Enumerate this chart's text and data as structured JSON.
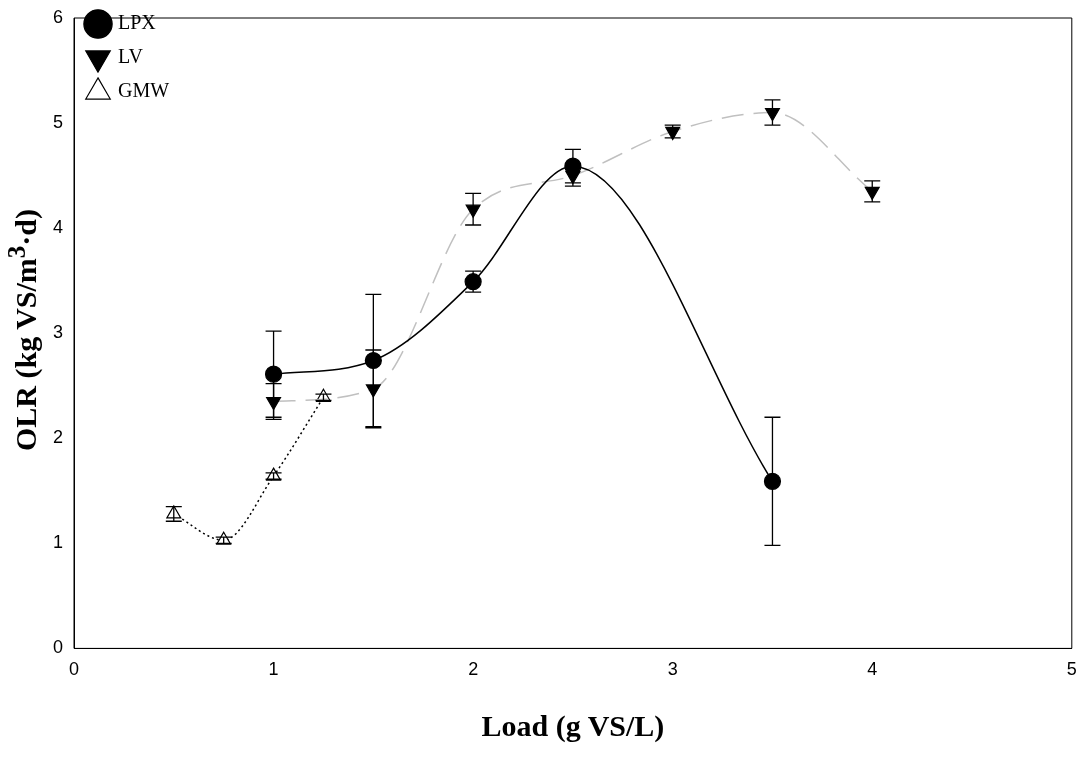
{
  "chart_data": {
    "type": "line",
    "xlabel": "Load (g VS/L)",
    "ylabel": "OLR (kg VS/m$^{3}$·d)",
    "xlim": [
      0,
      5
    ],
    "xticks": [
      0,
      1,
      2,
      3,
      4,
      5
    ],
    "ylim": [
      0,
      6
    ],
    "yticks": [
      0,
      1,
      2,
      3,
      4,
      5,
      6
    ],
    "grid": false,
    "legend": "top left",
    "series": [
      {
        "name": "LPX",
        "color": "#000000",
        "marker": "circle",
        "line_style": "solid",
        "x": [
          1,
          1.5,
          2,
          2.5,
          3.5
        ],
        "values": [
          2.61,
          2.74,
          3.49,
          4.59,
          1.59
        ],
        "errors": [
          0.41,
          0.63,
          0.1,
          0.16,
          0.61
        ]
      },
      {
        "name": "LV",
        "color": "#c0c0c0",
        "marker": "triangle-down",
        "line_style": "dashed",
        "x": [
          1,
          1.5,
          2,
          2.5,
          3,
          3.5,
          4
        ],
        "values": [
          2.35,
          2.47,
          4.18,
          4.5,
          4.92,
          5.1,
          4.35
        ],
        "errors": [
          0.17,
          0.37,
          0.15,
          0.1,
          0.06,
          0.12,
          0.1
        ]
      },
      {
        "name": "GMW",
        "color": "#000000",
        "marker": "triangle-open",
        "line_style": "dotted",
        "x": [
          0.5,
          0.75,
          1,
          1.25
        ],
        "values": [
          1.28,
          1.03,
          1.64,
          2.39
        ],
        "errors": [
          0.07,
          0.03,
          0.03,
          0.03
        ]
      }
    ]
  }
}
